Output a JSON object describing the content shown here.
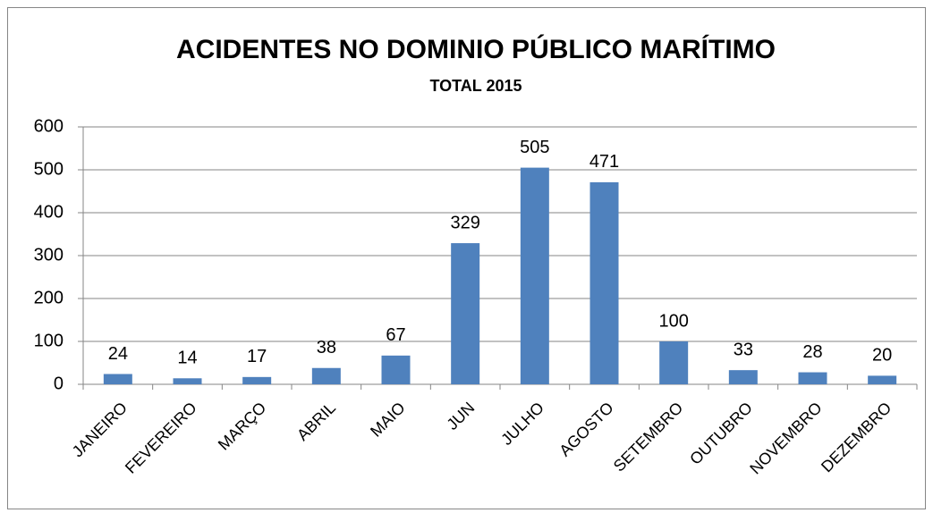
{
  "chart_data": {
    "type": "bar",
    "title": "ACIDENTES NO DOMINIO PÚBLICO MARÍTIMO",
    "subtitle": "TOTAL 2015",
    "categories": [
      "JANEIRO",
      "FEVEREIRO",
      "MARÇO",
      "ABRIL",
      "MAIO",
      "JUN",
      "JULHO",
      "AGOSTO",
      "SETEMBRO",
      "OUTUBRO",
      "NOVEMBRO",
      "DEZEMBRO"
    ],
    "values": [
      24,
      14,
      17,
      38,
      67,
      329,
      505,
      471,
      100,
      33,
      28,
      20
    ],
    "color": "#4f81bd",
    "ylim": [
      0,
      600
    ],
    "yticks": [
      0,
      100,
      200,
      300,
      400,
      500,
      600
    ],
    "grid": true
  }
}
